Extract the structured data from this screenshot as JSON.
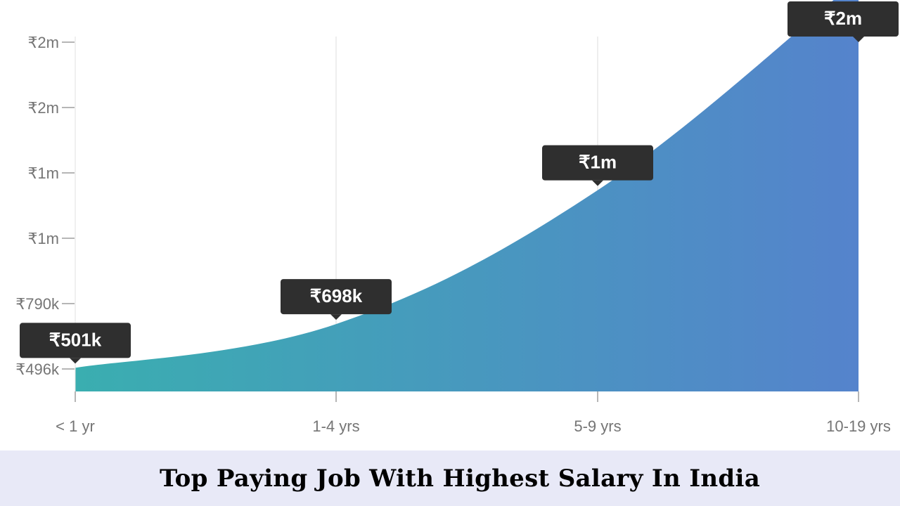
{
  "chart_data": {
    "type": "area",
    "categories": [
      "< 1 yr",
      "1-4 yrs",
      "5-9 yrs",
      "10-19 yrs"
    ],
    "values": [
      501,
      698,
      1300,
      2250
    ],
    "value_labels": [
      "₹501k",
      "₹698k",
      "₹1m",
      "₹2m"
    ],
    "y_tick_labels": [
      "₹496k",
      "₹790k",
      "₹1m",
      "₹1m",
      "₹2m",
      "₹2m"
    ],
    "y_tick_values": [
      496,
      790,
      1084,
      1378,
      1672,
      1966
    ],
    "ylim": [
      390,
      2100
    ],
    "grid": "vertical",
    "colors": {
      "gradient_start": "#3aaeb0",
      "gradient_end": "#5583cc",
      "label_bg": "#2f2f2f",
      "label_text": "#ffffff",
      "axis": "#9e9e9e",
      "gridline": "#dddddd"
    },
    "title": "Top Paying Job With Highest Salary In India"
  }
}
